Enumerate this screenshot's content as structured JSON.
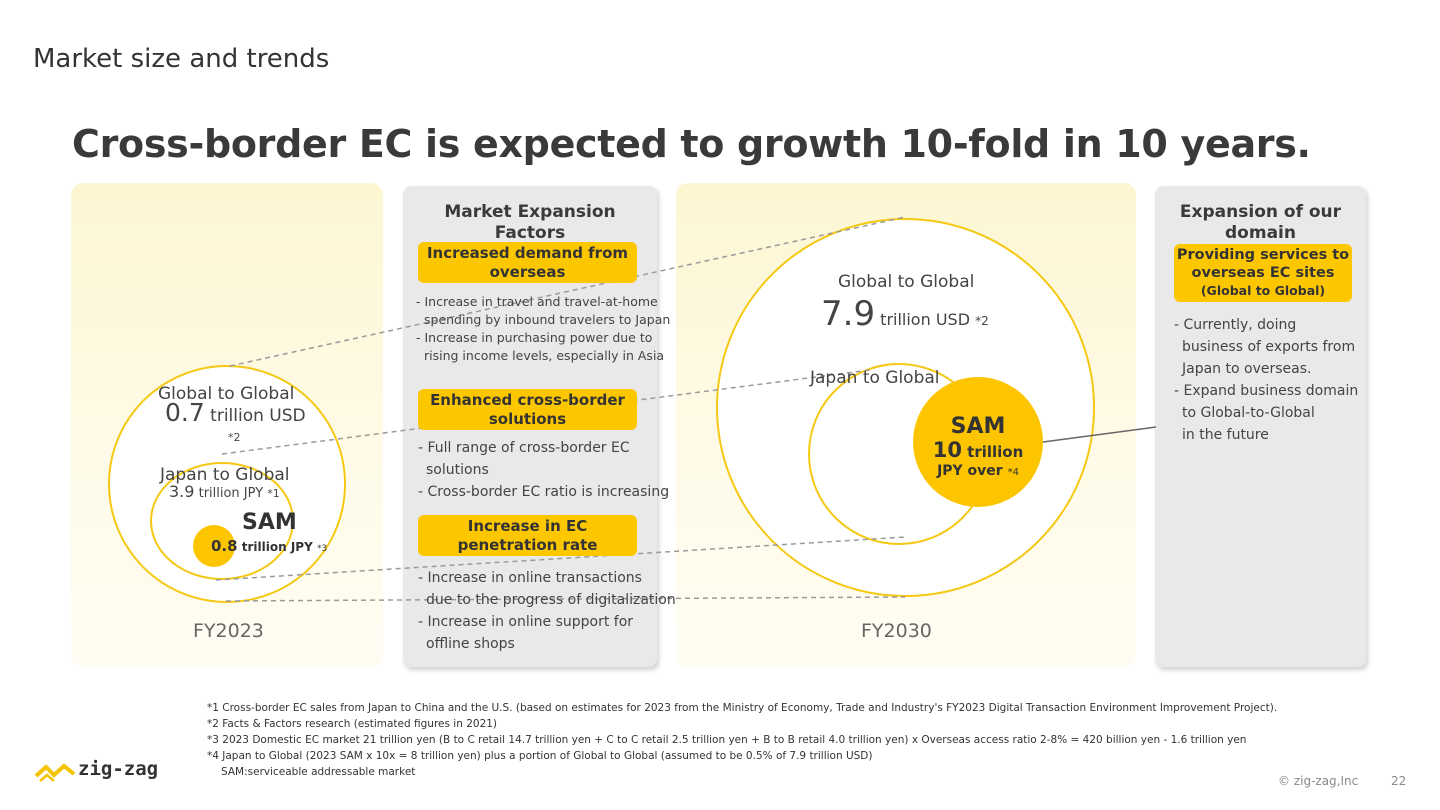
{
  "header": {
    "section_title": "Market size and trends",
    "headline": "Cross-border EC is expected to growth 10-fold in 10 years."
  },
  "fy2023": {
    "label": "FY2023",
    "global_title": "Global to Global",
    "global_value": "0.7",
    "global_unit": "trillion USD",
    "global_note": "*2",
    "japan_title": "Japan to Global",
    "japan_value": "3.9",
    "japan_unit": "trillion JPY",
    "japan_note": "*1",
    "sam_title": "SAM",
    "sam_value": "0.8",
    "sam_unit": "trillion JPY",
    "sam_note": "*3"
  },
  "factors": {
    "title_line1": "Market Expansion",
    "title_line2": "Factors",
    "items": [
      {
        "pill_line1": "Increased demand from",
        "pill_line2": "overseas",
        "bullets": [
          "- Increase in travel and travel-at-home",
          "spending by inbound travelers to Japan",
          "- Increase in purchasing power due to",
          "rising income levels, especially in Asia"
        ]
      },
      {
        "pill_line1": "Enhanced cross-border",
        "pill_line2": "solutions",
        "bullets": [
          "- Full range of cross-border EC",
          "solutions",
          "- Cross-border EC ratio is increasing"
        ]
      },
      {
        "pill_line1": "Increase in EC",
        "pill_line2": "penetration rate",
        "bullets": [
          "- Increase in online transactions",
          "due to the progress of digitalization",
          "- Increase in online support for",
          "offline shops"
        ]
      }
    ]
  },
  "fy2030": {
    "label": "FY2030",
    "global_title": "Global to Global",
    "global_value": "7.9",
    "global_unit": "trillion USD",
    "global_note": "*2",
    "japan_title": "Japan to Global",
    "sam_title": "SAM",
    "sam_value": "10",
    "sam_unit": "trillion",
    "sam_unit2": "JPY over",
    "sam_note": "*4"
  },
  "domain": {
    "title_line1": "Expansion of our",
    "title_line2": "domain",
    "pill_line1": "Providing services to",
    "pill_line2": "overseas EC sites",
    "pill_line3": "(Global to Global)",
    "bullets": [
      "- Currently, doing",
      "business of exports from",
      "Japan to overseas.",
      "- Expand business domain",
      "to Global-to-Global",
      "in the future"
    ]
  },
  "footnotes": [
    "*1 Cross-border EC sales from Japan to China and the U.S. (based on estimates for 2023 from the Ministry of Economy, Trade and Industry's FY2023 Digital Transaction Environment Improvement Project).",
    "*2 Facts & Factors research (estimated figures in 2021)",
    "*3 2023 Domestic EC market 21 trillion yen (B to C retail 14.7 trillion yen + C to C retail 2.5 trillion yen + B to B retail 4.0 trillion yen) x Overseas access ratio 2-8% = 420 billion yen - 1.6 trillion yen",
    "*4 Japan to Global (2023 SAM x 10x = 8 trillion yen) plus a portion of Global to Global (assumed to be 0.5% of 7.9 trillion USD)",
    "SAM:serviceable addressable market"
  ],
  "footer": {
    "logo_text": "zig-zag",
    "copyright": "© zig-zag,Inc",
    "page_number": "22"
  },
  "colors": {
    "accent_yellow": "#fdc700",
    "ring_yellow": "#f5c814",
    "panel_gray": "#e9e9e9",
    "panel_cream": "#fcf6d2"
  }
}
